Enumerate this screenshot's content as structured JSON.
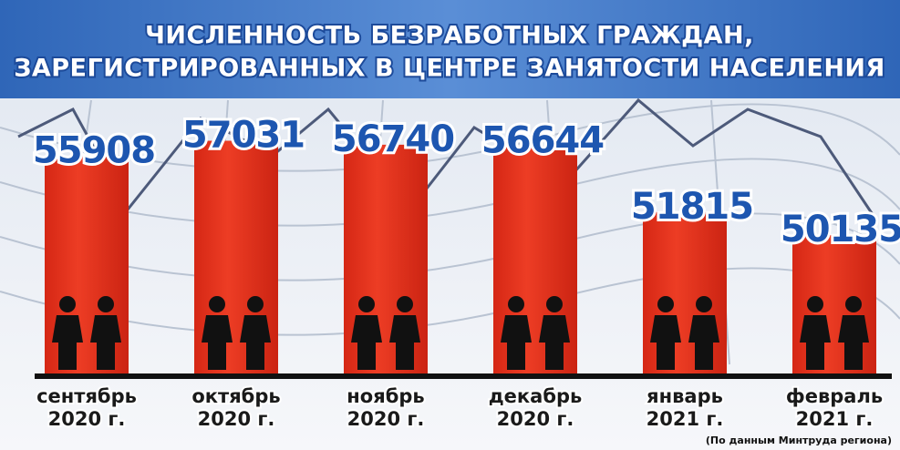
{
  "chart_data": {
    "type": "bar",
    "title": [
      "ЧИСЛЕННОСТЬ БЕЗРАБОТНЫХ ГРАЖДАН,",
      "ЗАРЕГИСТРИРОВАННЫХ В ЦЕНТРЕ ЗАНЯТОСТИ НАСЕЛЕНИЯ"
    ],
    "categories": [
      [
        "сентябрь",
        "2020 г."
      ],
      [
        "октябрь",
        "2020 г."
      ],
      [
        "ноябрь",
        "2020 г."
      ],
      [
        "декабрь",
        "2020 г."
      ],
      [
        "январь",
        "2021 г."
      ],
      [
        "февраль",
        "2021 г."
      ]
    ],
    "values": [
      55908,
      57031,
      56740,
      56644,
      51815,
      50135
    ],
    "color": "#e8321c",
    "ylim": [
      40000,
      60000
    ],
    "source": "(По данным Минтруда региона)"
  }
}
